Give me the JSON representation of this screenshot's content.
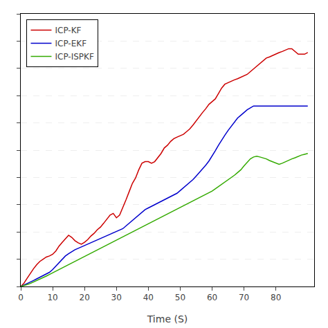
{
  "chart_data": {
    "type": "line",
    "xlabel": "Time (S)",
    "x": [
      0,
      1,
      2,
      3,
      4,
      5,
      6,
      7,
      8,
      9,
      10,
      11,
      12,
      13,
      14,
      15,
      16,
      17,
      18,
      19,
      20,
      21,
      22,
      23,
      24,
      25,
      26,
      27,
      28,
      29,
      30,
      31,
      32,
      33,
      34,
      35,
      36,
      37,
      38,
      39,
      40,
      41,
      42,
      43,
      44,
      45,
      46,
      47,
      48,
      49,
      50,
      51,
      52,
      53,
      54,
      55,
      56,
      57,
      58,
      59,
      60,
      61,
      62,
      63,
      64,
      65,
      66,
      67,
      68,
      69,
      70,
      71,
      72,
      73,
      74,
      75,
      76,
      77,
      78,
      79,
      80,
      81,
      82,
      83,
      84,
      85,
      86,
      87,
      88,
      89,
      90
    ],
    "series": [
      {
        "name": "ICP-KF",
        "color": "#cc0000",
        "values": [
          0,
          0.012,
          0.03,
          0.048,
          0.065,
          0.08,
          0.092,
          0.1,
          0.108,
          0.112,
          0.118,
          0.13,
          0.148,
          0.162,
          0.175,
          0.188,
          0.18,
          0.168,
          0.16,
          0.155,
          0.162,
          0.172,
          0.185,
          0.195,
          0.208,
          0.218,
          0.232,
          0.248,
          0.262,
          0.268,
          0.252,
          0.262,
          0.288,
          0.318,
          0.348,
          0.378,
          0.398,
          0.428,
          0.452,
          0.458,
          0.458,
          0.452,
          0.458,
          0.472,
          0.488,
          0.508,
          0.518,
          0.532,
          0.542,
          0.548,
          0.552,
          0.558,
          0.568,
          0.578,
          0.592,
          0.608,
          0.622,
          0.638,
          0.652,
          0.668,
          0.678,
          0.688,
          0.708,
          0.728,
          0.742,
          0.748,
          0.752,
          0.758,
          0.762,
          0.768,
          0.772,
          0.778,
          0.788,
          0.798,
          0.808,
          0.818,
          0.828,
          0.838,
          0.842,
          0.848,
          0.852,
          0.858,
          0.862,
          0.868,
          0.872,
          0.872,
          0.862,
          0.852,
          0.852,
          0.852,
          0.858
        ]
      },
      {
        "name": "ICP-EKF",
        "color": "#0000cc",
        "values": [
          0,
          0.005,
          0.01,
          0.016,
          0.022,
          0.028,
          0.034,
          0.04,
          0.046,
          0.052,
          0.062,
          0.075,
          0.088,
          0.1,
          0.112,
          0.12,
          0.128,
          0.135,
          0.14,
          0.145,
          0.15,
          0.155,
          0.16,
          0.165,
          0.17,
          0.175,
          0.18,
          0.185,
          0.19,
          0.195,
          0.2,
          0.205,
          0.212,
          0.222,
          0.232,
          0.242,
          0.252,
          0.262,
          0.272,
          0.282,
          0.288,
          0.294,
          0.3,
          0.306,
          0.312,
          0.318,
          0.324,
          0.33,
          0.336,
          0.342,
          0.352,
          0.362,
          0.372,
          0.382,
          0.392,
          0.405,
          0.418,
          0.432,
          0.445,
          0.46,
          0.478,
          0.498,
          0.518,
          0.538,
          0.555,
          0.572,
          0.588,
          0.605,
          0.618,
          0.628,
          0.638,
          0.648,
          0.655,
          0.662,
          0.662,
          0.662,
          0.662,
          0.662,
          0.662,
          0.662,
          0.662,
          0.662,
          0.662,
          0.662,
          0.662,
          0.662,
          0.662,
          0.662,
          0.662,
          0.662,
          0.662
        ]
      },
      {
        "name": "ICP-ISPKF",
        "color": "#33aa00",
        "values": [
          0,
          0.003,
          0.007,
          0.011,
          0.016,
          0.021,
          0.026,
          0.032,
          0.038,
          0.044,
          0.05,
          0.056,
          0.062,
          0.068,
          0.074,
          0.08,
          0.086,
          0.092,
          0.098,
          0.104,
          0.11,
          0.116,
          0.122,
          0.128,
          0.134,
          0.14,
          0.146,
          0.152,
          0.158,
          0.164,
          0.17,
          0.176,
          0.182,
          0.188,
          0.194,
          0.2,
          0.206,
          0.212,
          0.218,
          0.224,
          0.23,
          0.236,
          0.242,
          0.248,
          0.254,
          0.26,
          0.266,
          0.272,
          0.278,
          0.284,
          0.29,
          0.296,
          0.302,
          0.308,
          0.314,
          0.32,
          0.326,
          0.332,
          0.338,
          0.344,
          0.35,
          0.358,
          0.366,
          0.374,
          0.382,
          0.39,
          0.398,
          0.408,
          0.418,
          0.428,
          0.442,
          0.456,
          0.468,
          0.475,
          0.478,
          0.475,
          0.472,
          0.468,
          0.462,
          0.458,
          0.452,
          0.448,
          0.452,
          0.458,
          0.462,
          0.468,
          0.472,
          0.478,
          0.482,
          0.485,
          0.488
        ]
      }
    ],
    "xlim": [
      0,
      92
    ],
    "xticks": [
      0,
      10,
      20,
      30,
      40,
      50,
      60,
      70,
      80
    ],
    "ylim": [
      0,
      1
    ],
    "yticks": [
      0,
      0.1,
      0.2,
      0.3,
      0.4,
      0.5,
      0.6,
      0.7,
      0.8,
      0.9,
      1
    ],
    "tick_labels": "x",
    "grid": "y",
    "legend": "upper left"
  }
}
